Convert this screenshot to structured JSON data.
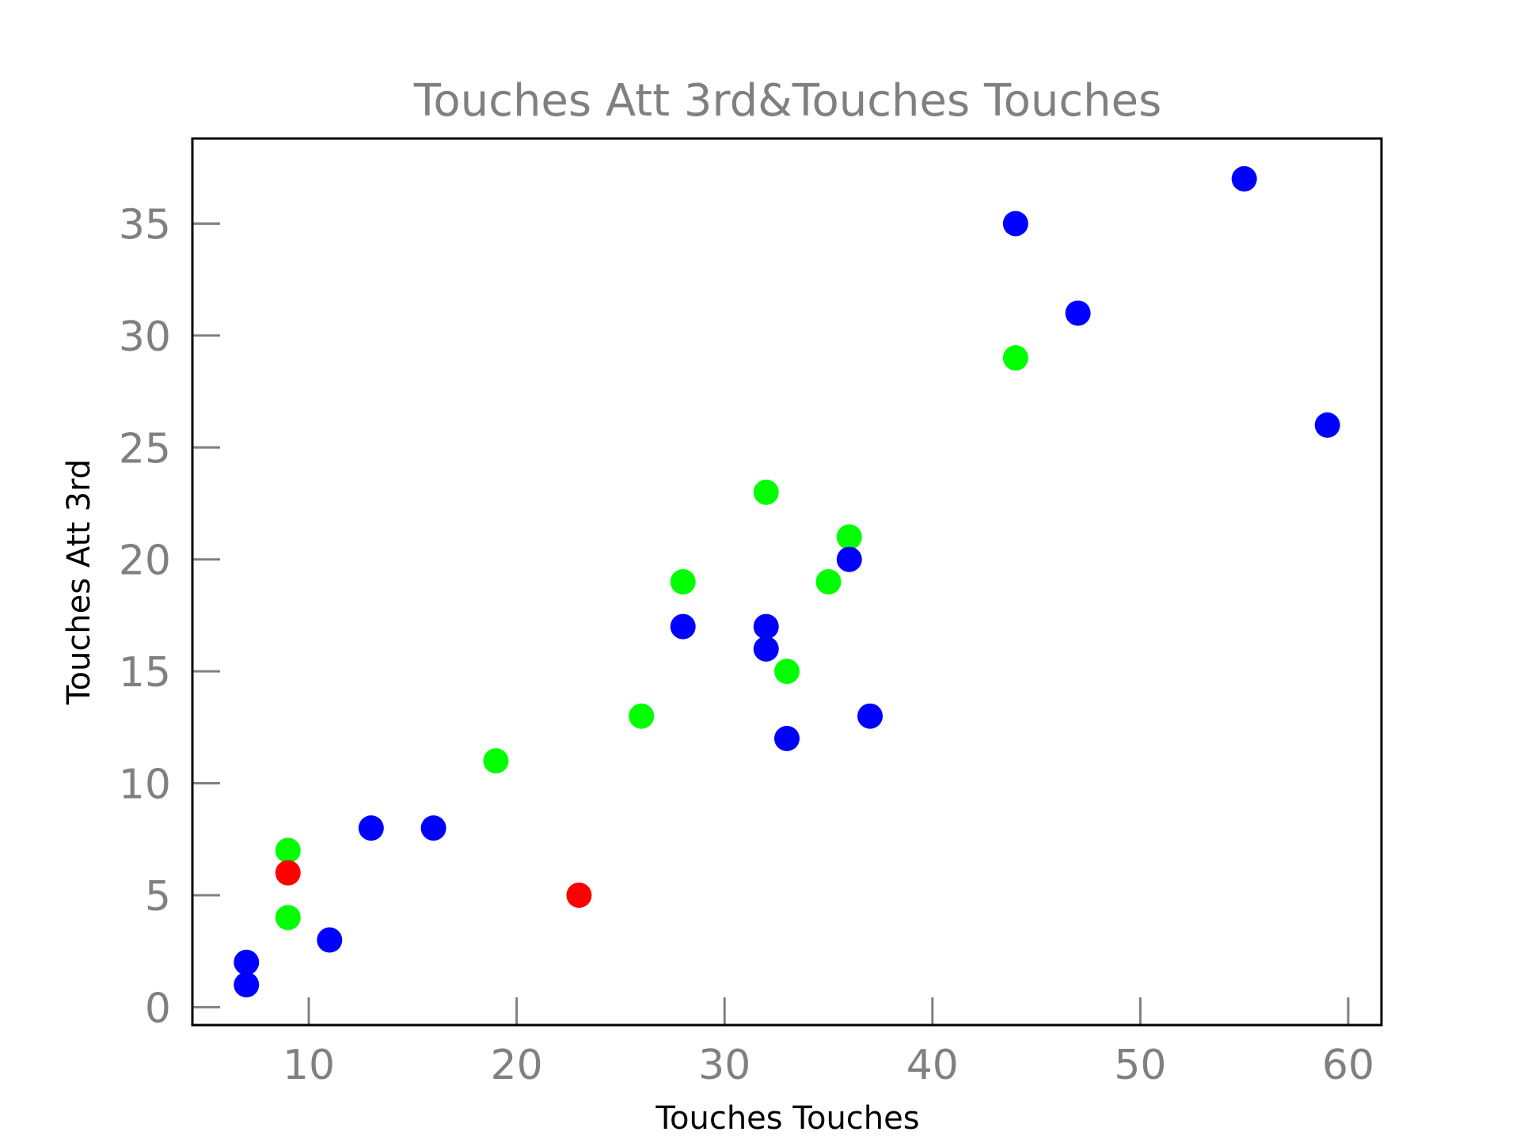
{
  "chart_data": {
    "type": "scatter",
    "title": "Touches Att 3rd&Touches Touches",
    "xlabel": "Touches Touches",
    "ylabel": "Touches Att 3rd",
    "xlim": [
      4.4,
      61.6
    ],
    "ylim": [
      -0.8,
      38.8
    ],
    "xticks": [
      10,
      20,
      30,
      40,
      50,
      60
    ],
    "yticks": [
      0,
      5,
      10,
      15,
      20,
      25,
      30,
      35
    ],
    "grid": false,
    "colors": {
      "text": "#808080",
      "axes": "#000000",
      "blue": "#0000ff",
      "green": "#00ff00",
      "red": "#ff0000"
    },
    "points": [
      {
        "x": 55,
        "y": 37,
        "color": "#0000ff"
      },
      {
        "x": 44,
        "y": 35,
        "color": "#0000ff"
      },
      {
        "x": 47,
        "y": 31,
        "color": "#0000ff"
      },
      {
        "x": 44,
        "y": 29,
        "color": "#00ff00"
      },
      {
        "x": 59,
        "y": 26,
        "color": "#0000ff"
      },
      {
        "x": 32,
        "y": 23,
        "color": "#00ff00"
      },
      {
        "x": 36,
        "y": 21,
        "color": "#00ff00"
      },
      {
        "x": 36,
        "y": 20,
        "color": "#0000ff"
      },
      {
        "x": 28,
        "y": 19,
        "color": "#00ff00"
      },
      {
        "x": 35,
        "y": 19,
        "color": "#00ff00"
      },
      {
        "x": 28,
        "y": 17,
        "color": "#0000ff"
      },
      {
        "x": 32,
        "y": 17,
        "color": "#0000ff"
      },
      {
        "x": 32,
        "y": 16,
        "color": "#0000ff"
      },
      {
        "x": 33,
        "y": 15,
        "color": "#00ff00"
      },
      {
        "x": 26,
        "y": 13,
        "color": "#00ff00"
      },
      {
        "x": 37,
        "y": 13,
        "color": "#0000ff"
      },
      {
        "x": 33,
        "y": 12,
        "color": "#0000ff"
      },
      {
        "x": 19,
        "y": 11,
        "color": "#00ff00"
      },
      {
        "x": 13,
        "y": 8,
        "color": "#0000ff"
      },
      {
        "x": 16,
        "y": 8,
        "color": "#0000ff"
      },
      {
        "x": 9,
        "y": 7,
        "color": "#00ff00"
      },
      {
        "x": 9,
        "y": 6,
        "color": "#ff0000"
      },
      {
        "x": 23,
        "y": 5,
        "color": "#ff0000"
      },
      {
        "x": 9,
        "y": 4,
        "color": "#00ff00"
      },
      {
        "x": 11,
        "y": 3,
        "color": "#0000ff"
      },
      {
        "x": 7,
        "y": 2,
        "color": "#0000ff"
      },
      {
        "x": 7,
        "y": 1,
        "color": "#0000ff"
      }
    ]
  }
}
